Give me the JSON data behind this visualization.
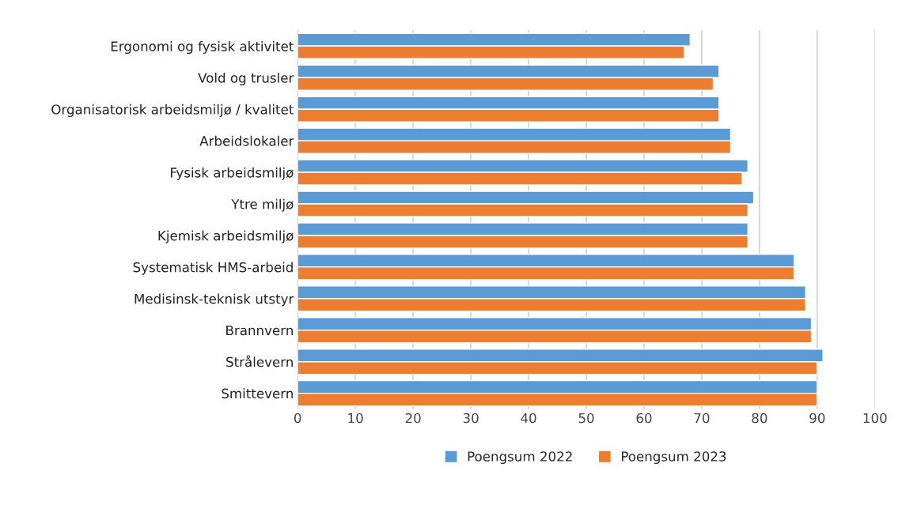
{
  "chart_data": {
    "type": "bar",
    "orientation": "horizontal",
    "categories": [
      "Ergonomi og fysisk aktivitet",
      "Vold og trusler",
      "Organisatorisk arbeidsmiljø / kvalitet",
      "Arbeidslokaler",
      "Fysisk arbeidsmiljø",
      "Ytre miljø",
      "Kjemisk arbeidsmiljø",
      "Systematisk HMS-arbeid",
      "Medisinsk-teknisk utstyr",
      "Brannvern",
      "Strålevern",
      "Smittevern"
    ],
    "series": [
      {
        "name": "Poengsum 2022",
        "color": "#5b9bd5",
        "values": [
          68,
          73,
          73,
          75,
          78,
          79,
          78,
          86,
          88,
          89,
          91,
          90
        ]
      },
      {
        "name": "Poengsum 2023",
        "color": "#ed7d31",
        "values": [
          67,
          72,
          73,
          75,
          77,
          78,
          78,
          86,
          88,
          89,
          90,
          90
        ]
      }
    ],
    "xlim": [
      0,
      100
    ],
    "xticks": [
      0,
      10,
      20,
      30,
      40,
      50,
      60,
      70,
      80,
      90,
      100
    ],
    "grid": "x",
    "legend": "bottom"
  }
}
